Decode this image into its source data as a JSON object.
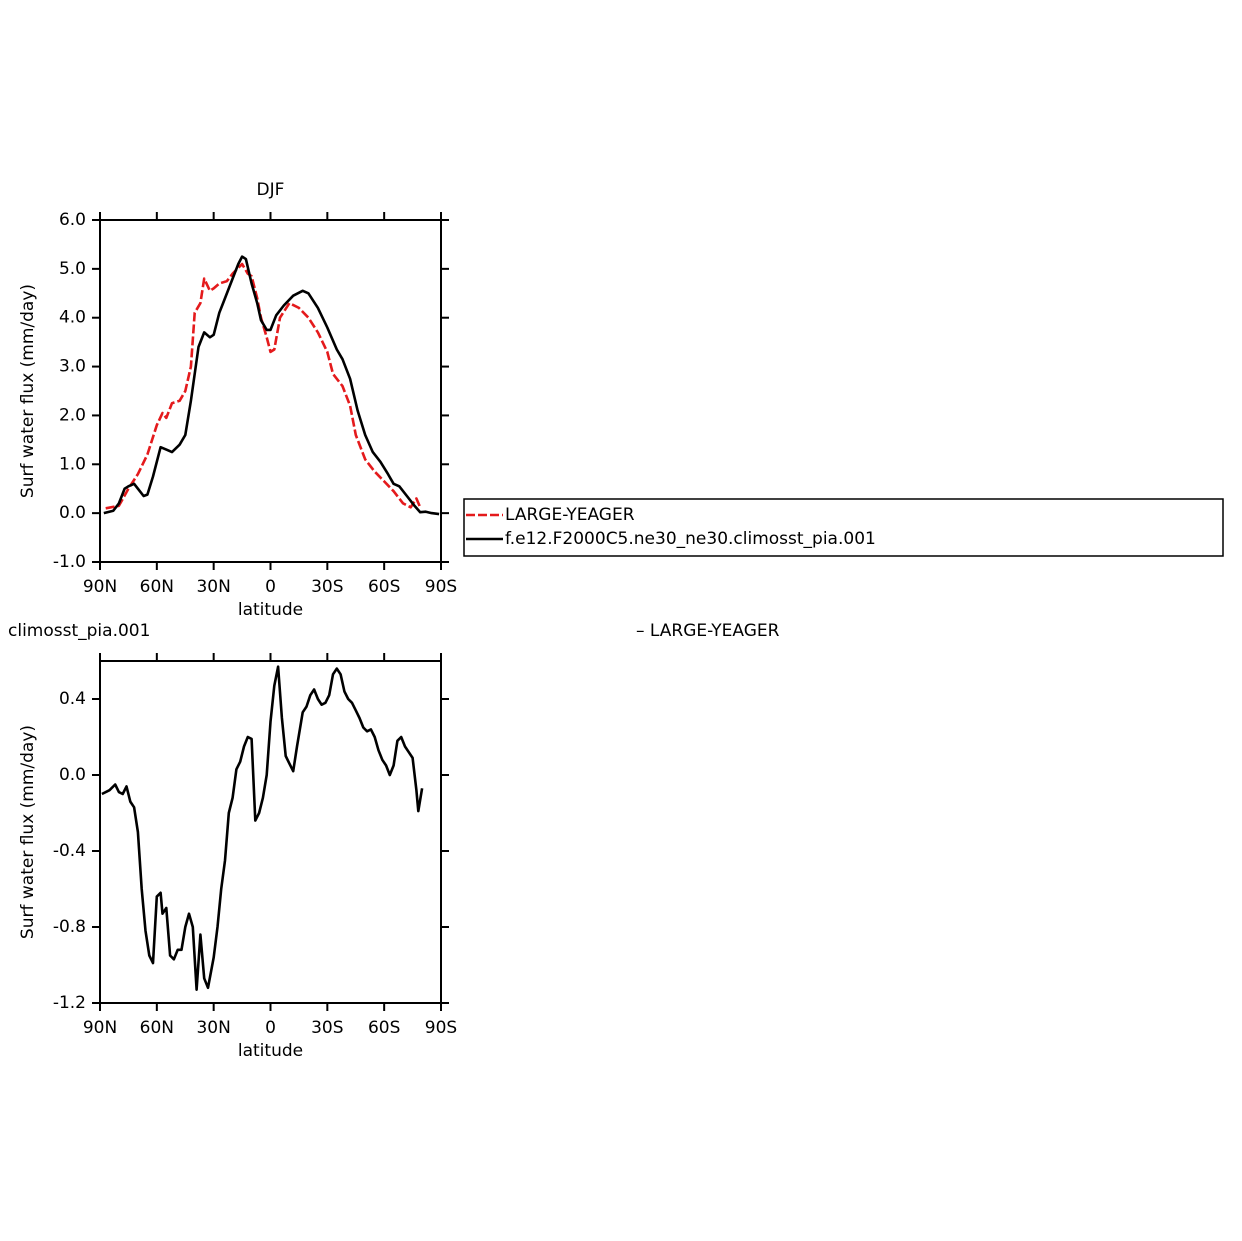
{
  "chart_data": [
    {
      "type": "line",
      "title": "DJF",
      "xlabel": "latitude",
      "ylabel": "Surf water flux (mm/day)",
      "xlim": [
        90,
        -90
      ],
      "xticks": [
        {
          "value": 90,
          "label": "90N"
        },
        {
          "value": 60,
          "label": "60N"
        },
        {
          "value": 30,
          "label": "30N"
        },
        0,
        {
          "value": -30,
          "label": "30S"
        },
        {
          "value": -60,
          "label": "60S"
        },
        {
          "value": -90,
          "label": "90S"
        }
      ],
      "ylim": [
        -1,
        6
      ],
      "yticks": [
        {
          "value": -1,
          "label": "-1.0"
        },
        {
          "value": 0,
          "label": "0.0"
        },
        {
          "value": 1,
          "label": "1.0"
        },
        {
          "value": 2,
          "label": "2.0"
        },
        {
          "value": 3,
          "label": "3.0"
        },
        {
          "value": 4,
          "label": "4.0"
        },
        {
          "value": 5,
          "label": "5.0"
        },
        {
          "value": 6,
          "label": "6.0"
        }
      ],
      "legend": "right",
      "series": [
        {
          "name": "LARGE-YEAGER",
          "color": "#e41a1c",
          "dashed": true,
          "x": [
            87,
            80,
            75,
            70,
            65,
            60,
            57,
            55,
            52,
            48,
            45,
            42,
            40,
            37,
            35,
            32,
            30,
            27,
            23,
            20,
            15,
            12,
            10,
            7,
            5,
            2,
            0,
            -2,
            -5,
            -10,
            -15,
            -20,
            -25,
            -30,
            -33,
            -38,
            -42,
            -45,
            -50,
            -55,
            -60,
            -65,
            -70,
            -74,
            -77,
            -79
          ],
          "values": [
            0.1,
            0.15,
            0.5,
            0.8,
            1.2,
            1.8,
            2.05,
            1.95,
            2.25,
            2.3,
            2.5,
            3.0,
            4.1,
            4.3,
            4.8,
            4.55,
            4.6,
            4.7,
            4.75,
            4.9,
            5.1,
            4.9,
            4.85,
            4.4,
            4.0,
            3.6,
            3.3,
            3.35,
            4.0,
            4.3,
            4.2,
            4.0,
            3.7,
            3.3,
            2.85,
            2.6,
            2.2,
            1.6,
            1.1,
            0.85,
            0.65,
            0.45,
            0.2,
            0.12,
            0.3,
            0.12
          ]
        },
        {
          "name": "f.e12.F2000C5.ne30_ne30.climosst_pia.001",
          "color": "#000000",
          "dashed": false,
          "x": [
            88,
            83,
            80,
            77,
            75,
            72,
            70,
            67,
            65,
            62,
            58,
            55,
            52,
            48,
            45,
            42,
            38,
            35,
            32,
            30,
            27,
            25,
            20,
            17,
            15,
            13,
            10,
            7,
            5,
            2,
            0,
            -3,
            -7,
            -12,
            -17,
            -20,
            -25,
            -30,
            -35,
            -38,
            -42,
            -46,
            -50,
            -54,
            -58,
            -62,
            -65,
            -68,
            -72,
            -76,
            -79,
            -82,
            -85,
            -89
          ],
          "values": [
            0.0,
            0.05,
            0.2,
            0.5,
            0.55,
            0.6,
            0.5,
            0.35,
            0.38,
            0.75,
            1.35,
            1.3,
            1.25,
            1.4,
            1.6,
            2.3,
            3.4,
            3.7,
            3.6,
            3.65,
            4.1,
            4.3,
            4.8,
            5.1,
            5.25,
            5.2,
            4.7,
            4.3,
            3.95,
            3.75,
            3.75,
            4.05,
            4.25,
            4.45,
            4.55,
            4.5,
            4.2,
            3.8,
            3.35,
            3.15,
            2.75,
            2.1,
            1.6,
            1.25,
            1.05,
            0.8,
            0.6,
            0.55,
            0.35,
            0.15,
            0.02,
            0.03,
            0.0,
            -0.02
          ]
        }
      ]
    },
    {
      "type": "line",
      "title": "climosst_pia.001",
      "right_title": "– LARGE-YEAGER",
      "xlabel": "latitude",
      "ylabel": "Surf water flux (mm/day)",
      "xlim": [
        90,
        -90
      ],
      "xticks": [
        {
          "value": 90,
          "label": "90N"
        },
        {
          "value": 60,
          "label": "60N"
        },
        {
          "value": 30,
          "label": "30N"
        },
        0,
        {
          "value": -30,
          "label": "30S"
        },
        {
          "value": -60,
          "label": "60S"
        },
        {
          "value": -90,
          "label": "90S"
        }
      ],
      "ylim": [
        -1.2,
        0.6
      ],
      "yticks": [
        -1.2,
        -0.8,
        -0.4,
        {
          "value": 0,
          "label": "0.0"
        },
        0.4
      ],
      "series": [
        {
          "color": "#000000",
          "dashed": false,
          "x": [
            89,
            85,
            82,
            80,
            78,
            76,
            74,
            72,
            70,
            68,
            66,
            64,
            62,
            60,
            58,
            57,
            55,
            53,
            51,
            49,
            47,
            45,
            43,
            41,
            39,
            37,
            35,
            33,
            30,
            28,
            26,
            24,
            22,
            20,
            18,
            16,
            14,
            12,
            10,
            8,
            6,
            4,
            2,
            0,
            -2,
            -4,
            -6,
            -8,
            -10,
            -12,
            -14,
            -17,
            -19,
            -21,
            -23,
            -25,
            -27,
            -29,
            -31,
            -33,
            -35,
            -37,
            -39,
            -41,
            -43,
            -45,
            -47,
            -49,
            -51,
            -53,
            -55,
            -57,
            -59,
            -61,
            -63,
            -65,
            -67,
            -69,
            -71,
            -73,
            -75,
            -77,
            -78,
            -80
          ],
          "values": [
            -0.1,
            -0.08,
            -0.05,
            -0.09,
            -0.1,
            -0.06,
            -0.14,
            -0.17,
            -0.3,
            -0.6,
            -0.82,
            -0.95,
            -0.99,
            -0.64,
            -0.62,
            -0.73,
            -0.7,
            -0.95,
            -0.97,
            -0.92,
            -0.92,
            -0.8,
            -0.73,
            -0.8,
            -1.13,
            -0.84,
            -1.07,
            -1.12,
            -0.96,
            -0.8,
            -0.6,
            -0.45,
            -0.2,
            -0.12,
            0.03,
            0.07,
            0.15,
            0.2,
            0.19,
            -0.24,
            -0.2,
            -0.12,
            0.0,
            0.28,
            0.47,
            0.57,
            0.3,
            0.1,
            0.06,
            0.02,
            0.15,
            0.33,
            0.36,
            0.42,
            0.45,
            0.4,
            0.37,
            0.38,
            0.42,
            0.53,
            0.56,
            0.53,
            0.44,
            0.4,
            0.38,
            0.34,
            0.3,
            0.25,
            0.23,
            0.24,
            0.2,
            0.13,
            0.08,
            0.05,
            0.0,
            0.05,
            0.18,
            0.2,
            0.15,
            0.12,
            0.09,
            -0.08,
            -0.19,
            -0.07
          ]
        }
      ]
    }
  ]
}
